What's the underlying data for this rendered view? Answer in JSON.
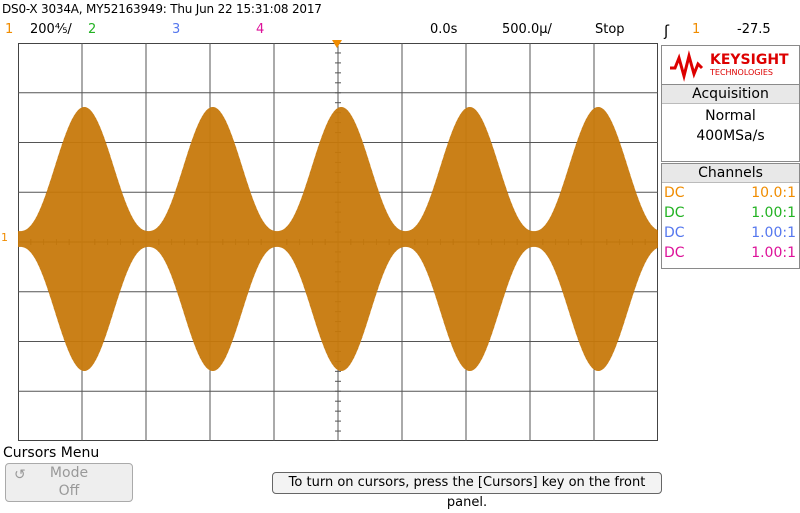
{
  "header": {
    "title": "DS0-X 3034A, MY52163949: Thu Jun 22 15:31:08 2017",
    "ch1_num": "1",
    "ch1_scale": "200⅘/",
    "ch2_num": "2",
    "ch3_num": "3",
    "ch4_num": "4",
    "time_delay": "0.0s",
    "time_scale": "500.0µ/",
    "run_state": "Stop",
    "trigger_symbol": "ʃ",
    "trigger_channel": "1",
    "trigger_level": "-27.5"
  },
  "logo": {
    "brand": "KEYSIGHT",
    "sub": "TECHNOLOGIES"
  },
  "acquisition": {
    "title": "Acquisition",
    "mode": "Normal",
    "rate": "400MSa/s"
  },
  "channels": {
    "title": "Channels",
    "rows": [
      {
        "coupling": "DC",
        "probe": "10.0:1",
        "color": "#f08c00"
      },
      {
        "coupling": "DC",
        "probe": "1.00:1",
        "color": "#22b222"
      },
      {
        "coupling": "DC",
        "probe": "1.00:1",
        "color": "#5577ee"
      },
      {
        "coupling": "DC",
        "probe": "1.00:1",
        "color": "#dd1199"
      }
    ]
  },
  "channel_colors": {
    "ch1": "#f08c00",
    "ch2": "#22b222",
    "ch3": "#5577ee",
    "ch4": "#dd1199",
    "trace": "#b36600"
  },
  "ch1_marker": "1",
  "cursors_menu": {
    "title": "Cursors Menu",
    "mode_label": "Mode",
    "mode_value": "Off",
    "mode_icon": "undo-arrow-icon"
  },
  "message": "To turn on cursors, press the [Cursors] key on the front panel."
}
